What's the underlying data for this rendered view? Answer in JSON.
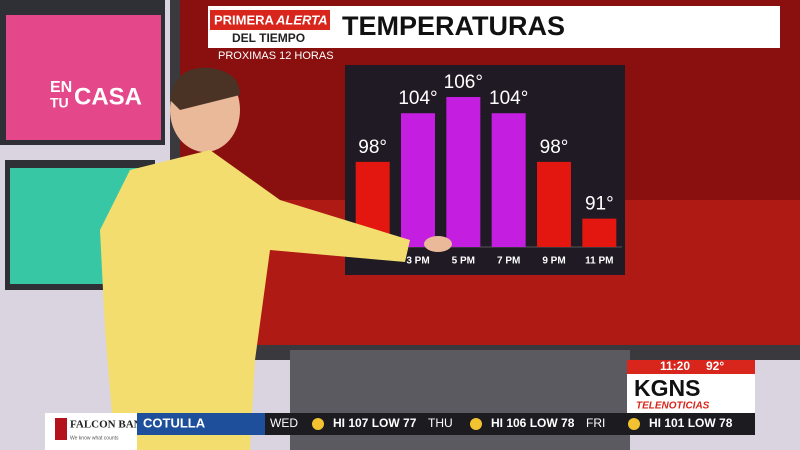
{
  "chart_data": {
    "type": "bar",
    "title": "TEMPERATURAS",
    "subtitle": "PROXIMAS 12 HORAS",
    "categories": [
      null,
      "3 PM",
      "5 PM",
      "7 PM",
      "9 PM",
      "11 PM"
    ],
    "values": [
      98,
      104,
      106,
      104,
      98,
      91
    ],
    "value_labels": [
      "98°",
      "104°",
      "106°",
      "104°",
      "98°",
      "91°"
    ],
    "colors": [
      "#e3170f",
      "#c41fe0",
      "#c41fe0",
      "#c41fe0",
      "#e3170f",
      "#e3170f"
    ],
    "ylim": [
      87.5,
      106
    ]
  },
  "brand": {
    "alert_top": "PRIMERA",
    "alert_word": "ALERTA",
    "alert_bottom": "DEL TIEMPO",
    "show_logo": [
      "EN",
      "TU",
      "CASA"
    ]
  },
  "station": {
    "time": "11:20",
    "temp": "92°",
    "call": "KGNS",
    "network": "TELENOTICIAS"
  },
  "ticker": {
    "sponsor": "FALCON BANK",
    "sponsor_tag": "We know what counts",
    "city": "COTULLA",
    "days": [
      {
        "day": "WED",
        "forecast": "HI 107 LOW 77"
      },
      {
        "day": "THU",
        "forecast": "HI 106 LOW 78"
      },
      {
        "day": "FRI",
        "forecast": "HI 101 LOW 78"
      }
    ]
  }
}
